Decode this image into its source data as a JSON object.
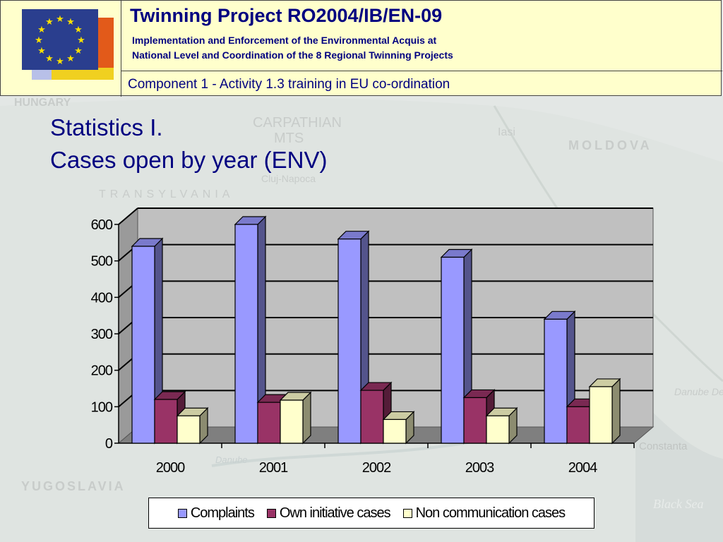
{
  "header": {
    "title": "Twinning Project RO2004/IB/EN-09",
    "subtitle_line1": "Implementation and Enforcement of the Environmental Acquis at",
    "subtitle_line2": "National Level and Coordination of the 8 Regional Twinning Projects",
    "component": "Component 1 - Activity 1.3 training in EU co-ordination"
  },
  "slide": {
    "title_line1": "Statistics I.",
    "title_line2": "Cases open by year (ENV)"
  },
  "background_labels": [
    "HUNGARY",
    "CARPATHIAN",
    "MTS",
    "Iasi",
    "MOLDOVA",
    "Cluj-Napoca",
    "TRANSYLVANIA",
    "YUGOSLAVIA",
    "Constanta",
    "Danube Delta",
    "Black Sea",
    "Danube"
  ],
  "colors": {
    "complaints": "#9999ff",
    "own_initiative": "#993366",
    "non_communication": "#ffffcc",
    "plot_wall": "#c0c0c0",
    "header_bg": "#ffffcc",
    "header_text": "#000080"
  },
  "chart_data": {
    "type": "bar",
    "style": "3d-clustered",
    "categories": [
      "2000",
      "2001",
      "2002",
      "2003",
      "2004"
    ],
    "series": [
      {
        "name": "Complaints",
        "values": [
          540,
          600,
          560,
          510,
          340
        ]
      },
      {
        "name": "Own initiative cases",
        "values": [
          120,
          112,
          145,
          125,
          100
        ]
      },
      {
        "name": "Non communication cases",
        "values": [
          75,
          118,
          65,
          75,
          155
        ]
      }
    ],
    "yticks": [
      "0",
      "100",
      "200",
      "300",
      "400",
      "500",
      "600"
    ],
    "ylim": [
      0,
      600
    ],
    "grid": true,
    "legend_position": "bottom"
  }
}
